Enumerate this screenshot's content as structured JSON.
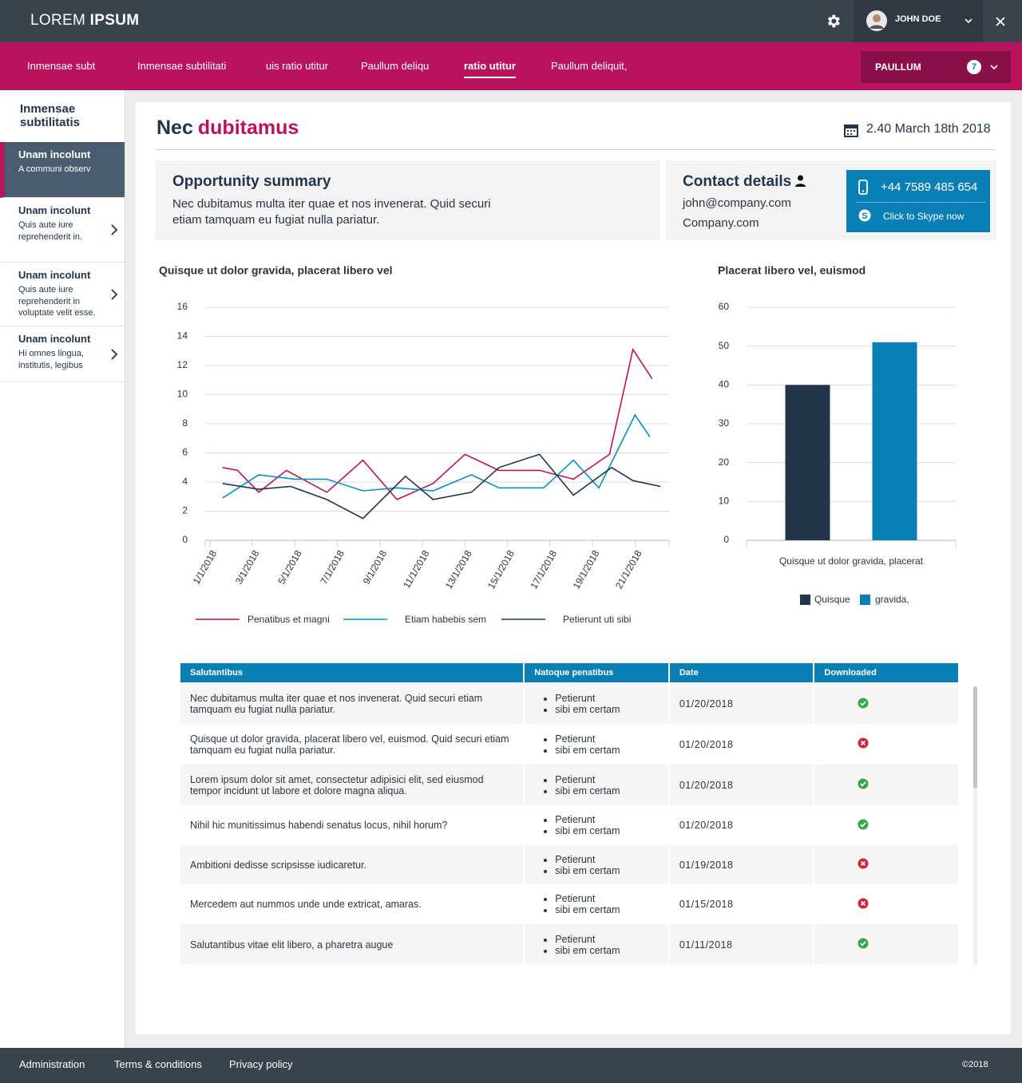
{
  "header": {
    "brand_light": "LOREM",
    "brand_bold": "IPSUM",
    "user": "JOHN DOE"
  },
  "nav": {
    "items": [
      "Inmensae subt",
      "Inmensae subtilitati",
      "uis ratio utitur",
      "Paullum deliqu",
      "ratio utitur",
      "Paullum deliquit,"
    ],
    "active": 4,
    "button": "PAULLUM",
    "badge": 7
  },
  "sidebar": {
    "title": "Inmensae subtilitatis",
    "active": 0,
    "items": [
      {
        "title": "Unam incolunt",
        "text": "A communi observ"
      },
      {
        "title": "Unam incolunt",
        "text": "Quis aute iure reprehenderit in."
      },
      {
        "title": "Unam incolunt",
        "text": "Quis aute iure reprehenderit in voluptate velit esse."
      },
      {
        "title": "Unam incolunt",
        "text": "Hi omnes lingua, institutis, legibus"
      }
    ]
  },
  "main": {
    "title_first": "Nec",
    "title_second": "dubitamus",
    "date": "2.40 March 18th 2018"
  },
  "summary": {
    "title": "Opportunity summary",
    "text": "Nec dubitamus multa iter quae et nos invenerat. Quid securi etiam tamquam eu fugiat nulla pariatur."
  },
  "contact": {
    "title": "Contact details",
    "email": "john@company.com",
    "company": "Company.com",
    "phone": "+44 7589 485 654",
    "skype": "Click to Skype now"
  },
  "chart_data": [
    {
      "type": "line",
      "title": "Quisque ut dolor gravida, placerat libero vel",
      "xlim": [
        0.78,
        22.6
      ],
      "xticks": [
        {
          "value": 1,
          "label": "1/1/2018"
        },
        {
          "value": 3,
          "label": "3/1/2018"
        },
        {
          "value": 5,
          "label": "5/1/2018"
        },
        {
          "value": 7,
          "label": "7/1/2018"
        },
        {
          "value": 9,
          "label": "9/1/2018"
        },
        {
          "value": 11,
          "label": "11/1/2018"
        },
        {
          "value": 13,
          "label": "13/1/2018"
        },
        {
          "value": 15,
          "label": "15/1/2018"
        },
        {
          "value": 17,
          "label": "17/1/2018"
        },
        {
          "value": 19,
          "label": "19/1/2018"
        },
        {
          "value": 21,
          "label": "21/1/2018"
        }
      ],
      "ylim": [
        0,
        16
      ],
      "yticks": [
        0,
        2,
        4,
        6,
        8,
        10,
        12,
        14,
        16
      ],
      "grid": true,
      "series": [
        {
          "name": "Penatibus et magni",
          "color": "#b8145e",
          "x": [
            1.6,
            2.3,
            3.3,
            4.6,
            6.5,
            8.2,
            9.8,
            11.5,
            13.0,
            14.6,
            16.5,
            18.1,
            19.8,
            20.9,
            21.8
          ],
          "values": [
            5.0,
            4.8,
            3.3,
            4.8,
            3.3,
            5.5,
            2.8,
            3.9,
            5.9,
            4.8,
            4.8,
            4.2,
            5.9,
            13.1,
            11.1
          ]
        },
        {
          "name": "Etiam habebis sem",
          "color": "#0a8fc0",
          "x": [
            1.6,
            3.3,
            5.0,
            6.5,
            8.2,
            9.8,
            11.5,
            13.3,
            14.6,
            16.7,
            18.1,
            19.3,
            21.0,
            21.7
          ],
          "values": [
            2.9,
            4.5,
            4.2,
            4.2,
            3.4,
            3.6,
            3.4,
            4.5,
            3.6,
            3.6,
            5.5,
            3.6,
            8.6,
            7.1
          ]
        },
        {
          "name": "Petierunt uti sibi",
          "color": "#22354a",
          "x": [
            1.6,
            3.3,
            4.8,
            6.5,
            8.2,
            10.2,
            11.5,
            13.3,
            14.6,
            16.5,
            18.1,
            19.9,
            20.9,
            22.2
          ],
          "values": [
            3.9,
            3.5,
            3.7,
            2.8,
            1.5,
            4.4,
            2.8,
            3.3,
            5.0,
            5.9,
            3.1,
            5.0,
            4.1,
            3.7
          ]
        }
      ]
    },
    {
      "type": "bar",
      "title": "Placerat libero vel, euismod",
      "categories": [
        "Quisque ut dolor gravida, placerat"
      ],
      "ylim": [
        0,
        60
      ],
      "yticks": [
        0,
        10,
        20,
        30,
        40,
        50,
        60
      ],
      "grid": true,
      "series": [
        {
          "name": "Quisque",
          "color": "#22354a",
          "values": [
            40
          ]
        },
        {
          "name": "gravida,",
          "color": "#0a7fb5",
          "values": [
            51
          ]
        }
      ]
    }
  ],
  "table": {
    "headers": [
      "Salutantibus",
      "Natoque penatibus",
      "Date",
      "Downloaded"
    ],
    "rows": [
      {
        "text": "Nec dubitamus multa iter quae et nos invenerat. Quid securi etiam tamquam eu fugiat nulla pariatur.",
        "bullets": [
          "Petierunt",
          "sibi em certam"
        ],
        "date": "01/20/2018",
        "downloaded": true
      },
      {
        "text": "Quisque ut dolor gravida, placerat libero vel, euismod. Quid securi etiam tamquam eu fugiat nulla pariatur.",
        "bullets": [
          "Petierunt",
          "sibi em certam"
        ],
        "date": "01/20/2018",
        "downloaded": false
      },
      {
        "text": "Lorem ipsum dolor sit amet, consectetur adipisici elit, sed eiusmod tempor incidunt ut labore et dolore magna aliqua.",
        "bullets": [
          "Petierunt",
          "sibi em certam"
        ],
        "date": "01/20/2018",
        "downloaded": true
      },
      {
        "text": "Nihil hic munitissimus habendi senatus locus, nihil horum?",
        "bullets": [
          "Petierunt",
          "sibi em certam"
        ],
        "date": "01/20/2018",
        "downloaded": true
      },
      {
        "text": "Ambitioni dedisse scripsisse iudicaretur.",
        "bullets": [
          "Petierunt",
          "sibi em certam"
        ],
        "date": "01/19/2018",
        "downloaded": false
      },
      {
        "text": "Mercedem aut nummos unde unde extricat, amaras.",
        "bullets": [
          "Petierunt",
          "sibi em certam"
        ],
        "date": "01/15/2018",
        "downloaded": false
      },
      {
        "text": "Salutantibus vitae elit libero, a pharetra augue",
        "bullets": [
          "Petierunt",
          "sibi em certam"
        ],
        "date": "01/11/2018",
        "downloaded": true
      }
    ]
  },
  "footer": {
    "links": [
      "Administration",
      "Terms & conditions",
      "Privacy policy"
    ],
    "copyright": "©2018"
  }
}
